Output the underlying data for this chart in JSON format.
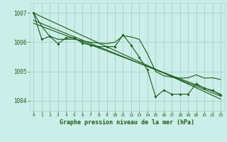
{
  "title": "Graphe pression niveau de la mer (hPa)",
  "background_color": "#cceee8",
  "grid_color": "#aad4ce",
  "line_color": "#1a5c1a",
  "ylim": [
    1003.65,
    1007.35
  ],
  "yticks": [
    1004,
    1005,
    1006,
    1007
  ],
  "xlim": [
    -0.5,
    23.5
  ],
  "x_labels": [
    "0",
    "1",
    "2",
    "3",
    "4",
    "5",
    "6",
    "7",
    "8",
    "9",
    "10",
    "11",
    "12",
    "13",
    "14",
    "15",
    "16",
    "17",
    "18",
    "19",
    "20",
    "21",
    "22",
    "23"
  ],
  "series_smooth": [
    1007.0,
    1006.55,
    1006.2,
    1006.1,
    1006.1,
    1006.1,
    1006.05,
    1006.0,
    1005.97,
    1005.95,
    1006.0,
    1006.22,
    1006.18,
    1006.1,
    1005.6,
    1005.0,
    1004.85,
    1004.8,
    1004.77,
    1004.78,
    1004.88,
    1004.77,
    1004.78,
    1004.72
  ],
  "series_jagged": [
    1007.0,
    1006.1,
    1006.2,
    1005.95,
    1006.15,
    1006.15,
    1005.97,
    1005.9,
    1005.85,
    1005.85,
    1005.85,
    1006.25,
    1005.9,
    1005.48,
    1005.05,
    1004.13,
    1004.35,
    1004.22,
    1004.22,
    1004.22,
    1004.58,
    1004.42,
    1004.35,
    1004.18
  ],
  "trend_lines": [
    [
      [
        0,
        1007.0
      ],
      [
        23,
        1004.05
      ]
    ],
    [
      [
        0,
        1006.75
      ],
      [
        23,
        1004.15
      ]
    ],
    [
      [
        0,
        1006.65
      ],
      [
        23,
        1004.22
      ]
    ]
  ]
}
